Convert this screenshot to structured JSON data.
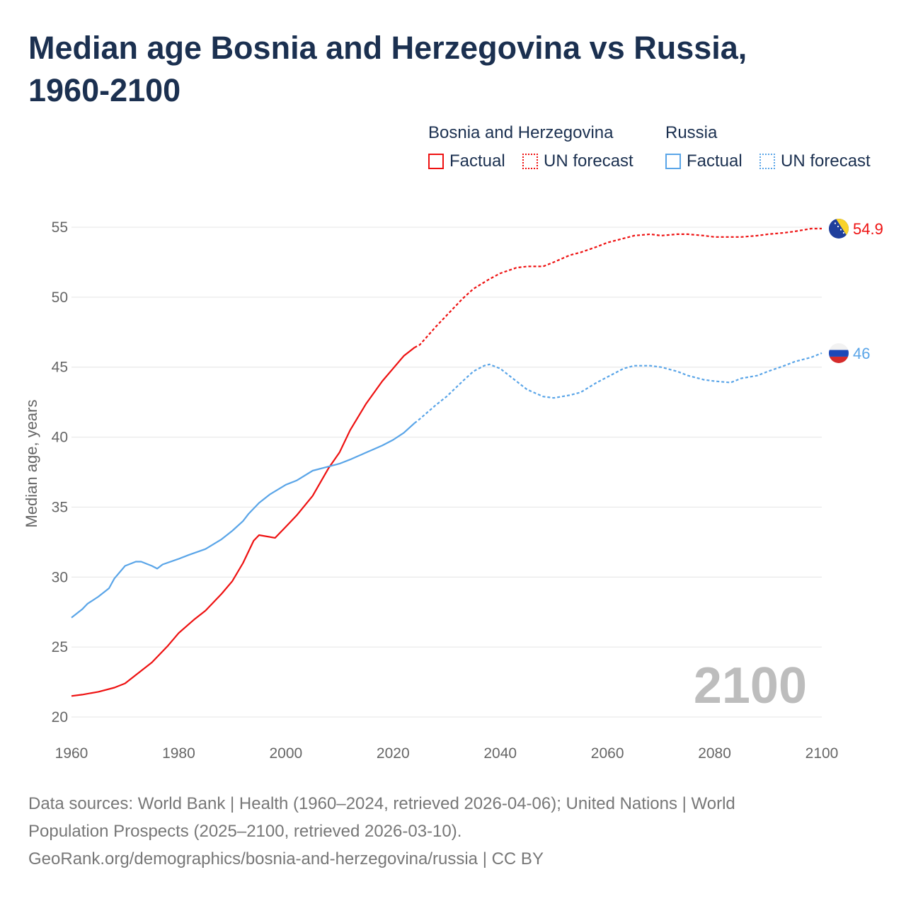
{
  "title": "Median age Bosnia and Herzegovina vs Russia, 1960-2100",
  "legend": {
    "groups": [
      {
        "name": "Bosnia and Herzegovina",
        "color": "#ee1111",
        "factual": "Factual",
        "forecast": "UN forecast"
      },
      {
        "name": "Russia",
        "color": "#5aa5e8",
        "factual": "Factual",
        "forecast": "UN forecast"
      }
    ]
  },
  "chart_data": {
    "type": "line",
    "title": "Median age Bosnia and Herzegovina vs Russia, 1960-2100",
    "xlabel": "",
    "ylabel": "Median age, years",
    "xlim": [
      1960,
      2100
    ],
    "ylim": [
      20,
      55
    ],
    "xticks": [
      "1960",
      "1980",
      "2000",
      "2020",
      "2040",
      "2060",
      "2080",
      "2100"
    ],
    "yticks": [
      "20",
      "25",
      "30",
      "35",
      "40",
      "45",
      "50",
      "55"
    ],
    "grid": true,
    "year_watermark": "2100",
    "series": [
      {
        "name": "Bosnia and Herzegovina",
        "color": "#ee1111",
        "end_label": "54.9",
        "factual": {
          "x": [
            1960,
            1962,
            1965,
            1968,
            1970,
            1973,
            1975,
            1978,
            1980,
            1983,
            1985,
            1988,
            1990,
            1992,
            1994,
            1995,
            1998,
            2000,
            2002,
            2005,
            2008,
            2010,
            2012,
            2015,
            2018,
            2020,
            2022,
            2024
          ],
          "y": [
            21.5,
            21.6,
            21.8,
            22.1,
            22.4,
            23.3,
            23.9,
            25.1,
            26.0,
            27.0,
            27.6,
            28.8,
            29.7,
            31.0,
            32.6,
            33.0,
            32.8,
            33.6,
            34.4,
            35.8,
            37.8,
            38.9,
            40.5,
            42.4,
            44.0,
            44.9,
            45.8,
            46.4
          ]
        },
        "forecast": {
          "x": [
            2024,
            2025,
            2028,
            2030,
            2033,
            2035,
            2038,
            2040,
            2043,
            2045,
            2048,
            2050,
            2053,
            2055,
            2058,
            2060,
            2063,
            2065,
            2068,
            2070,
            2073,
            2075,
            2078,
            2080,
            2083,
            2085,
            2088,
            2090,
            2093,
            2095,
            2098,
            2100
          ],
          "y": [
            46.4,
            46.6,
            47.9,
            48.7,
            49.9,
            50.6,
            51.3,
            51.7,
            52.1,
            52.2,
            52.2,
            52.5,
            53.0,
            53.2,
            53.6,
            53.9,
            54.2,
            54.4,
            54.5,
            54.4,
            54.5,
            54.5,
            54.4,
            54.3,
            54.3,
            54.3,
            54.4,
            54.5,
            54.6,
            54.7,
            54.9,
            54.9
          ]
        }
      },
      {
        "name": "Russia",
        "color": "#5aa5e8",
        "end_label": "46",
        "factual": {
          "x": [
            1960,
            1962,
            1963,
            1965,
            1967,
            1968,
            1970,
            1972,
            1973,
            1975,
            1976,
            1977,
            1980,
            1982,
            1985,
            1988,
            1990,
            1992,
            1993,
            1995,
            1997,
            2000,
            2002,
            2005,
            2008,
            2010,
            2012,
            2015,
            2018,
            2020,
            2022,
            2024
          ],
          "y": [
            27.1,
            27.7,
            28.1,
            28.6,
            29.2,
            29.9,
            30.8,
            31.1,
            31.1,
            30.8,
            30.6,
            30.9,
            31.3,
            31.6,
            32.0,
            32.7,
            33.3,
            34.0,
            34.5,
            35.3,
            35.9,
            36.6,
            36.9,
            37.6,
            37.9,
            38.1,
            38.4,
            38.9,
            39.4,
            39.8,
            40.3,
            41.0
          ]
        },
        "forecast": {
          "x": [
            2024,
            2025,
            2028,
            2030,
            2033,
            2035,
            2037,
            2038,
            2040,
            2042,
            2045,
            2048,
            2050,
            2053,
            2055,
            2058,
            2060,
            2063,
            2065,
            2068,
            2070,
            2073,
            2075,
            2078,
            2080,
            2083,
            2085,
            2088,
            2090,
            2093,
            2095,
            2098,
            2100
          ],
          "y": [
            41.0,
            41.3,
            42.3,
            42.9,
            44.0,
            44.7,
            45.1,
            45.2,
            44.9,
            44.3,
            43.4,
            42.9,
            42.8,
            43.0,
            43.2,
            43.9,
            44.3,
            44.9,
            45.1,
            45.1,
            45.0,
            44.7,
            44.4,
            44.1,
            44.0,
            43.9,
            44.2,
            44.4,
            44.7,
            45.1,
            45.4,
            45.7,
            46.0
          ]
        }
      }
    ]
  },
  "footer": {
    "line1": "Data sources: World Bank | Health (1960–2024, retrieved 2026-04-06); United Nations | World",
    "line2": "Population Prospects (2025–2100, retrieved 2026-03-10).",
    "line3": "GeoRank.org/demographics/bosnia-and-herzegovina/russia | CC BY"
  }
}
